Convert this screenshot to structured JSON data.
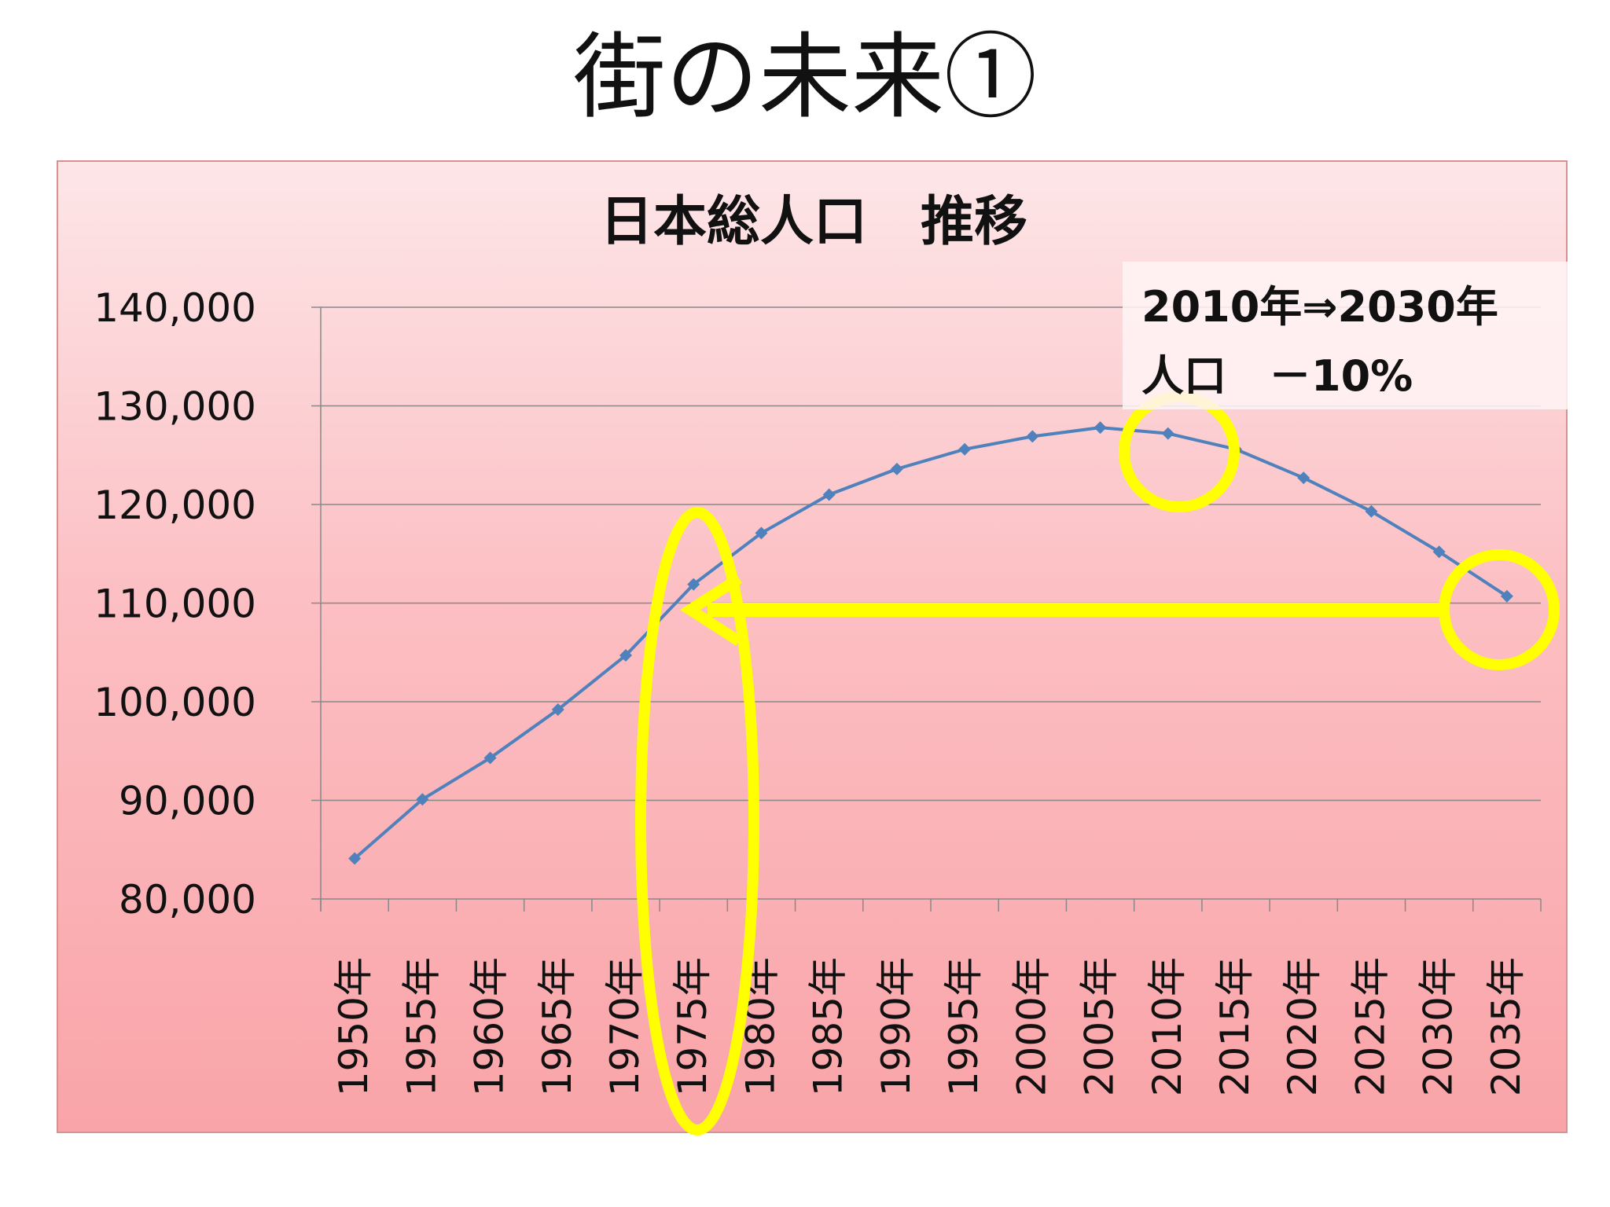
{
  "slide": {
    "title": "街の未来①"
  },
  "callout": {
    "line1": "2010年⇒2030年",
    "line2": "人口　－10%"
  },
  "colors": {
    "line": "#4f81bd",
    "highlight": "#ffff00",
    "grid": "#888888"
  },
  "chart_data": {
    "type": "line",
    "title": "日本総人口　推移",
    "xlabel": "",
    "ylabel": "",
    "categories": [
      "1950年",
      "1955年",
      "1960年",
      "1965年",
      "1970年",
      "1975年",
      "1980年",
      "1985年",
      "1990年",
      "1995年",
      "2000年",
      "2005年",
      "2010年",
      "2015年",
      "2020年",
      "2025年",
      "2030年",
      "2035年"
    ],
    "series": [
      {
        "values": [
          84100,
          90100,
          94300,
          99200,
          104700,
          111900,
          117100,
          121000,
          123600,
          125600,
          126900,
          127800,
          127200,
          125600,
          122700,
          119300,
          115200,
          110700
        ]
      }
    ],
    "ylim": [
      80000,
      140000
    ],
    "yticks": [
      80000,
      90000,
      100000,
      110000,
      120000,
      130000,
      140000
    ],
    "ytick_labels": [
      "80,000",
      "90,000",
      "100,000",
      "110,000",
      "120,000",
      "130,000",
      "140,000"
    ],
    "grid": true,
    "legend": "none"
  }
}
